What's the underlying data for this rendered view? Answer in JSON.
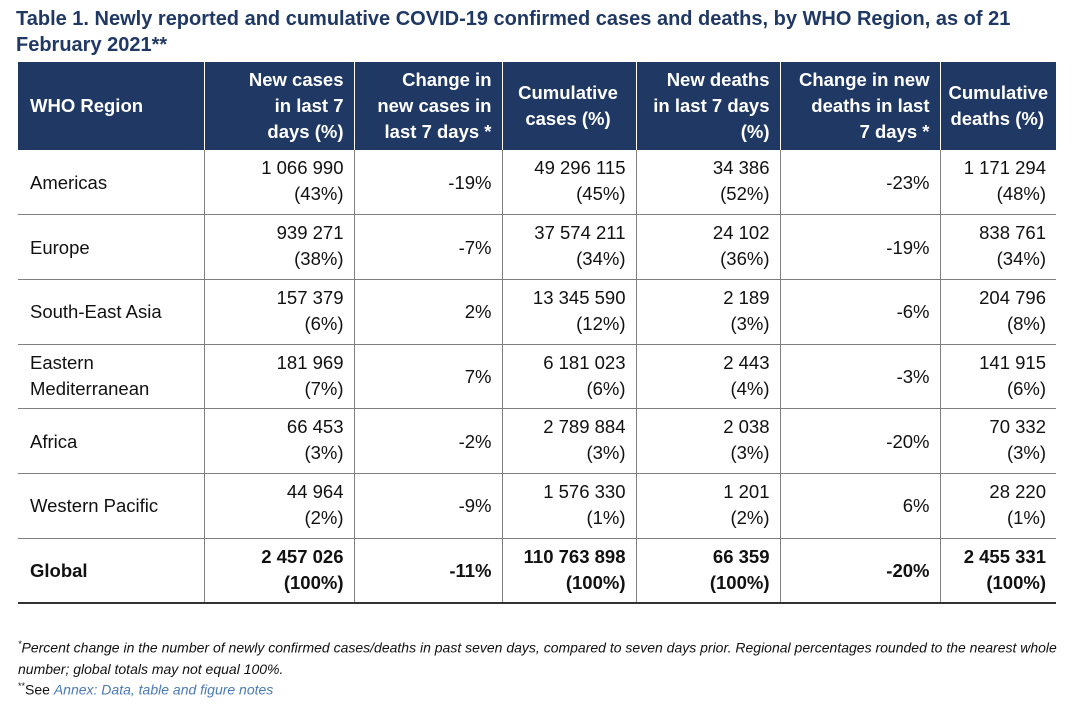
{
  "title": "Table 1. Newly reported and cumulative COVID-19 confirmed cases and deaths, by WHO Region, as of 21 February 2021**",
  "header_color": "#1f3864",
  "columns": [
    "WHO Region",
    "New cases\nin last 7\ndays (%)",
    "Change in\nnew cases in\nlast 7 days *",
    "Cumulative\ncases (%)",
    "New deaths\nin last 7 days\n(%)",
    "Change in new\ndeaths in last\n7 days *",
    "Cumulative\ndeaths (%)"
  ],
  "rows": [
    {
      "region": "Americas",
      "new_cases": "1 066 990\n(43%)",
      "change_cases": "-19%",
      "cum_cases": "49 296 115\n(45%)",
      "new_deaths": "34 386\n(52%)",
      "change_deaths": "-23%",
      "cum_deaths": "1 171 294\n(48%)"
    },
    {
      "region": "Europe",
      "new_cases": "939 271\n(38%)",
      "change_cases": "-7%",
      "cum_cases": "37 574 211\n(34%)",
      "new_deaths": "24 102\n(36%)",
      "change_deaths": "-19%",
      "cum_deaths": "838 761\n(34%)"
    },
    {
      "region": "South-East Asia",
      "new_cases": "157 379\n(6%)",
      "change_cases": "2%",
      "cum_cases": "13 345 590\n(12%)",
      "new_deaths": "2 189\n(3%)",
      "change_deaths": "-6%",
      "cum_deaths": "204 796\n(8%)"
    },
    {
      "region": "Eastern\nMediterranean",
      "new_cases": "181 969\n(7%)",
      "change_cases": "7%",
      "cum_cases": "6 181 023\n(6%)",
      "new_deaths": "2 443\n(4%)",
      "change_deaths": "-3%",
      "cum_deaths": "141 915\n(6%)"
    },
    {
      "region": "Africa",
      "new_cases": "66 453\n(3%)",
      "change_cases": "-2%",
      "cum_cases": "2 789 884\n(3%)",
      "new_deaths": "2 038\n(3%)",
      "change_deaths": "-20%",
      "cum_deaths": "70 332\n(3%)"
    },
    {
      "region": "Western Pacific",
      "new_cases": "44 964\n(2%)",
      "change_cases": "-9%",
      "cum_cases": "1 576 330\n(1%)",
      "new_deaths": "1 201\n(2%)",
      "change_deaths": "6%",
      "cum_deaths": "28 220\n(1%)"
    },
    {
      "region": "Global",
      "new_cases": "2 457 026\n(100%)",
      "change_cases": "-11%",
      "cum_cases": "110 763 898\n(100%)",
      "new_deaths": "66 359\n(100%)",
      "change_deaths": "-20%",
      "cum_deaths": "2 455 331\n(100%)"
    }
  ],
  "footnote_1_marker": "*",
  "footnote_1": "Percent change in the number of newly confirmed cases/deaths in past seven days, compared to seven days prior. Regional percentages rounded to the nearest whole number; global totals may not equal 100%.",
  "footnote_2_marker": "**",
  "footnote_2_see": "See ",
  "footnote_2_link": "Annex: Data, table and figure notes"
}
